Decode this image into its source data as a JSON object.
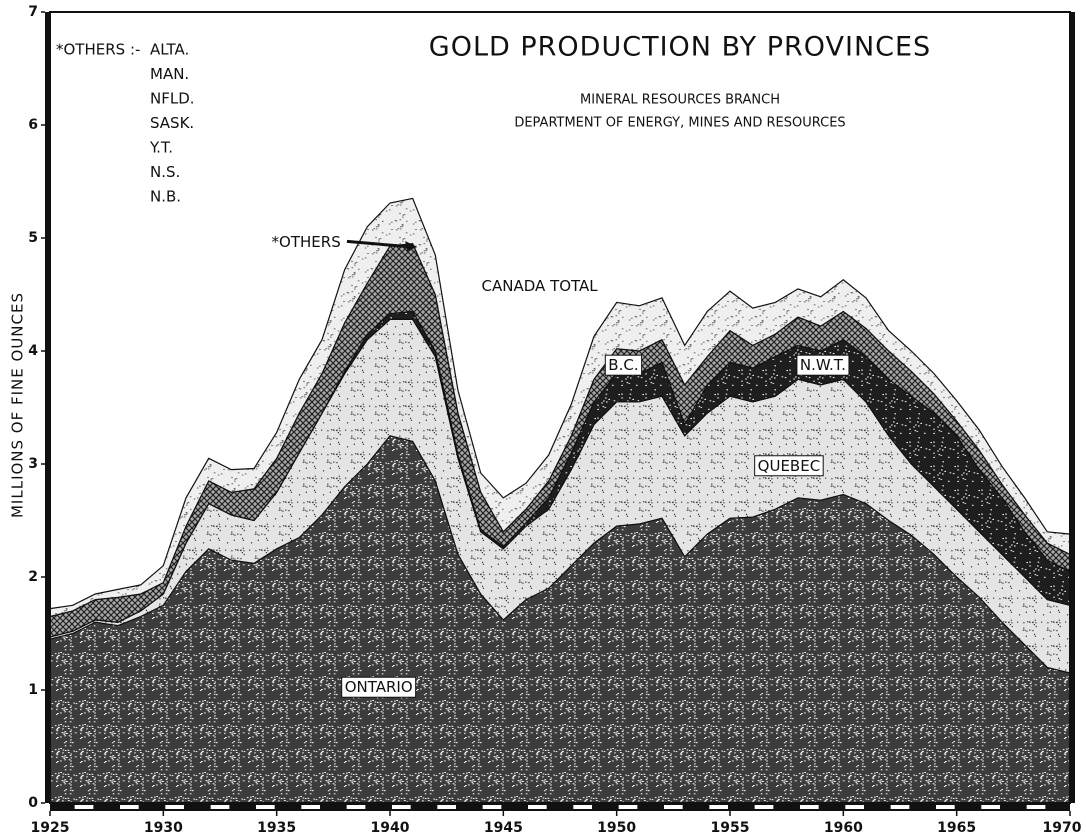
{
  "chart_data": {
    "type": "stacked_area",
    "title": "GOLD PRODUCTION BY PROVINCES",
    "subtitle": [
      "MINERAL RESOURCES BRANCH",
      "DEPARTMENT OF ENERGY, MINES AND RESOURCES"
    ],
    "ylabel": "MILLIONS OF FINE OUNCES",
    "annotations": {
      "total": "CANADA TOTAL"
    },
    "others_note": {
      "heading": "*OTHERS :-",
      "items": [
        "ALTA.",
        "MAN.",
        "NFLD.",
        "SASK.",
        "Y.T.",
        "N.S.",
        "N.B."
      ]
    },
    "x": [
      1925,
      1926,
      1927,
      1928,
      1929,
      1930,
      1931,
      1932,
      1933,
      1934,
      1935,
      1936,
      1937,
      1938,
      1939,
      1940,
      1941,
      1942,
      1943,
      1944,
      1945,
      1946,
      1947,
      1948,
      1949,
      1950,
      1951,
      1952,
      1953,
      1954,
      1955,
      1956,
      1957,
      1958,
      1959,
      1960,
      1961,
      1962,
      1963,
      1964,
      1965,
      1966,
      1967,
      1968,
      1969,
      1970
    ],
    "xlim": [
      1925,
      1970
    ],
    "xticks": [
      1925,
      1930,
      1935,
      1940,
      1945,
      1950,
      1955,
      1960,
      1965,
      1970
    ],
    "ylim": [
      0,
      7
    ],
    "yticks": [
      0,
      1,
      2,
      3,
      4,
      5,
      6,
      7
    ],
    "series": [
      {
        "name": "ONTARIO",
        "color": "#3c3c3c",
        "values": [
          1.45,
          1.5,
          1.6,
          1.57,
          1.65,
          1.75,
          2.05,
          2.25,
          2.15,
          2.12,
          2.25,
          2.35,
          2.55,
          2.8,
          3.0,
          3.25,
          3.2,
          2.85,
          2.2,
          1.85,
          1.62,
          1.8,
          1.9,
          2.1,
          2.3,
          2.45,
          2.47,
          2.52,
          2.18,
          2.38,
          2.52,
          2.53,
          2.6,
          2.7,
          2.68,
          2.73,
          2.65,
          2.5,
          2.37,
          2.2,
          2.0,
          1.82,
          1.6,
          1.4,
          1.2,
          1.15
        ]
      },
      {
        "name": "QUEBEC",
        "color": "#e4e4e4",
        "values": [
          0.02,
          0.02,
          0.02,
          0.03,
          0.05,
          0.1,
          0.25,
          0.4,
          0.4,
          0.38,
          0.5,
          0.75,
          0.9,
          1.0,
          1.1,
          1.03,
          1.08,
          1.1,
          0.85,
          0.55,
          0.63,
          0.65,
          0.7,
          0.85,
          1.05,
          1.1,
          1.08,
          1.08,
          1.07,
          1.07,
          1.08,
          1.02,
          1.0,
          1.05,
          1.02,
          1.02,
          0.9,
          0.75,
          0.63,
          0.6,
          0.6,
          0.58,
          0.6,
          0.6,
          0.6,
          0.6
        ]
      },
      {
        "name": "N.W.T.",
        "color": "#1e1e1e",
        "values": [
          0,
          0,
          0,
          0,
          0,
          0,
          0,
          0,
          0,
          0,
          0,
          0,
          0,
          0.02,
          0.05,
          0.05,
          0.07,
          0.05,
          0.03,
          0.02,
          0.02,
          0.03,
          0.1,
          0.15,
          0.2,
          0.25,
          0.25,
          0.3,
          0.1,
          0.25,
          0.3,
          0.3,
          0.35,
          0.3,
          0.3,
          0.35,
          0.4,
          0.5,
          0.6,
          0.65,
          0.65,
          0.55,
          0.5,
          0.4,
          0.35,
          0.3
        ]
      },
      {
        "name": "B.C.",
        "color": "#a8a8a8",
        "values": [
          0.18,
          0.18,
          0.18,
          0.22,
          0.15,
          0.1,
          0.15,
          0.2,
          0.2,
          0.28,
          0.3,
          0.35,
          0.35,
          0.43,
          0.45,
          0.6,
          0.6,
          0.5,
          0.37,
          0.33,
          0.13,
          0.12,
          0.15,
          0.15,
          0.2,
          0.22,
          0.2,
          0.2,
          0.35,
          0.25,
          0.28,
          0.2,
          0.2,
          0.25,
          0.22,
          0.25,
          0.25,
          0.25,
          0.22,
          0.17,
          0.13,
          0.17,
          0.12,
          0.15,
          0.15,
          0.15
        ]
      },
      {
        "name": "*OTHERS",
        "color": "#efefef",
        "values": [
          0.07,
          0.05,
          0.05,
          0.07,
          0.08,
          0.15,
          0.25,
          0.2,
          0.2,
          0.18,
          0.23,
          0.3,
          0.3,
          0.47,
          0.5,
          0.38,
          0.4,
          0.35,
          0.2,
          0.17,
          0.3,
          0.23,
          0.23,
          0.28,
          0.38,
          0.41,
          0.4,
          0.37,
          0.35,
          0.4,
          0.35,
          0.33,
          0.28,
          0.25,
          0.26,
          0.28,
          0.27,
          0.18,
          0.18,
          0.18,
          0.18,
          0.18,
          0.16,
          0.15,
          0.1,
          0.18
        ]
      }
    ]
  }
}
